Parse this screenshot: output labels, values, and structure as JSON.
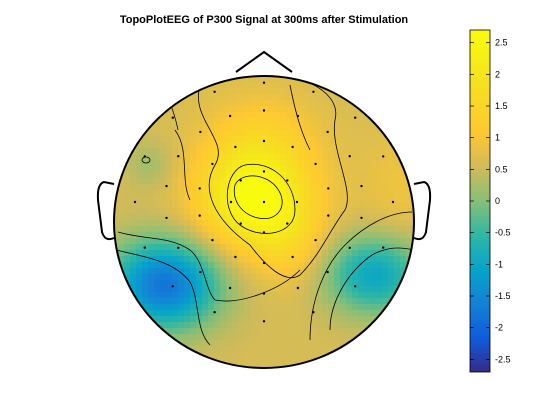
{
  "chart_data": {
    "type": "heatmap",
    "subtype": "topographic-scalp-map",
    "title": "TopoPlotEEG of P300 Signal at 300ms after Stimulation",
    "colorbar": {
      "limits": [
        -2.7,
        2.7
      ],
      "ticks": [
        "2.5",
        "2",
        "1.5",
        "1",
        "0.5",
        "0",
        "-0.5",
        "-1",
        "-1.5",
        "-2",
        "-2.5"
      ],
      "tick_values": [
        2.5,
        2,
        1.5,
        1,
        0.5,
        0,
        -0.5,
        -1,
        -1.5,
        -2,
        -2.5
      ],
      "placement": "right",
      "colormap": "parula"
    },
    "electrodes_shown": true,
    "contour_lines": true,
    "peak_value": 2.6,
    "min_value": -2.1
  },
  "colors": {
    "head_outline": "#000000",
    "electrode_dot": "#000000",
    "contour": "#000000"
  }
}
